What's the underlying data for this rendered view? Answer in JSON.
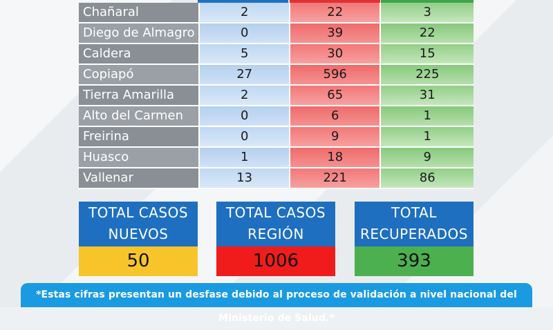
{
  "table": {
    "rows": [
      {
        "commune": "Chañaral",
        "new": "2",
        "total": "22",
        "recovered": "3"
      },
      {
        "commune": "Diego de Almagro",
        "new": "0",
        "total": "39",
        "recovered": "22"
      },
      {
        "commune": "Caldera",
        "new": "5",
        "total": "30",
        "recovered": "15"
      },
      {
        "commune": "Copiapó",
        "new": "27",
        "total": "596",
        "recovered": "225"
      },
      {
        "commune": "Tierra Amarilla",
        "new": "2",
        "total": "65",
        "recovered": "31"
      },
      {
        "commune": "Alto del Carmen",
        "new": "0",
        "total": "6",
        "recovered": "1"
      },
      {
        "commune": "Freirina",
        "new": "0",
        "total": "9",
        "recovered": "1"
      },
      {
        "commune": "Huasco",
        "new": "1",
        "total": "18",
        "recovered": "9"
      },
      {
        "commune": "Vallenar",
        "new": "13",
        "total": "221",
        "recovered": "86"
      }
    ]
  },
  "totals": {
    "new": {
      "line1": "TOTAL CASOS",
      "line2": "NUEVOS",
      "value": "50"
    },
    "region": {
      "line1": "TOTAL CASOS",
      "line2": "REGIÓN",
      "value": "1006"
    },
    "recovered": {
      "line1": "TOTAL",
      "line2": "RECUPERADOS",
      "value": "393"
    }
  },
  "footnote": "*Estas cifras presentan un desfase debido al proceso de validación a nivel nacional del Ministerio de Salud.*",
  "colors": {
    "new": "#1e6fc0",
    "total": "#e23030",
    "recovered": "#3da54a",
    "new_total_bg": "#f7c52a",
    "region_total_bg": "#f01c1c",
    "recovered_total_bg": "#4cb04f",
    "footnote_bg": "#1a9ae0"
  }
}
